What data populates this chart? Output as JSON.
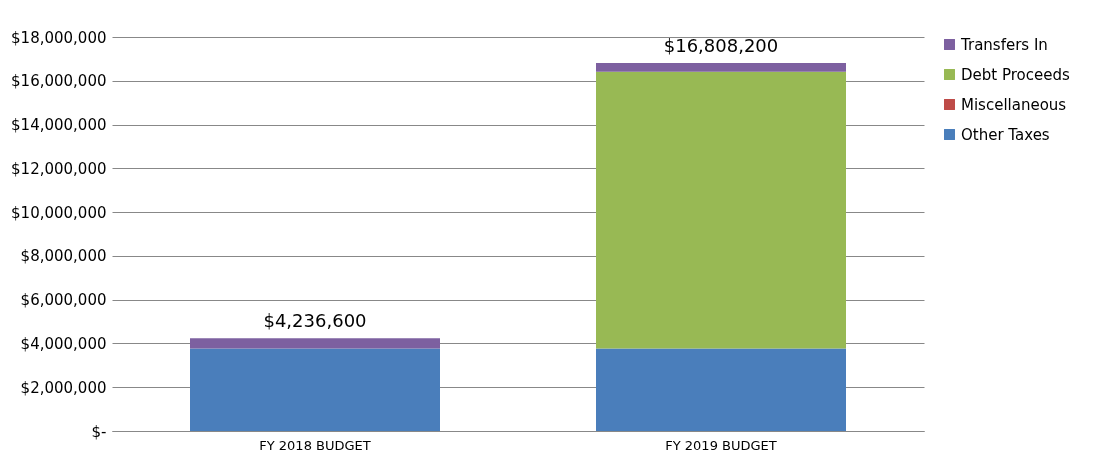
{
  "chart_data": {
    "type": "bar",
    "stacked": true,
    "categories": [
      "FY 2018 BUDGET",
      "FY 2019 BUDGET"
    ],
    "series": [
      {
        "name": "Other Taxes",
        "color": "#4a7ebb",
        "values": [
          3770000,
          3770000
        ]
      },
      {
        "name": "Miscellaneous",
        "color": "#be4b48",
        "values": [
          0,
          0
        ]
      },
      {
        "name": "Debt Proceeds",
        "color": "#98b954",
        "values": [
          0,
          12640000
        ]
      },
      {
        "name": "Transfers In",
        "color": "#7d60a0",
        "values": [
          466600,
          398200
        ]
      }
    ],
    "totals": [
      "$4,236,600",
      "$16,808,200"
    ],
    "ylim": [
      0,
      18000000
    ],
    "yticks": [
      {
        "value": 0,
        "label": "$-"
      },
      {
        "value": 2000000,
        "label": "$2,000,000"
      },
      {
        "value": 4000000,
        "label": "$4,000,000"
      },
      {
        "value": 6000000,
        "label": "$6,000,000"
      },
      {
        "value": 8000000,
        "label": "$8,000,000"
      },
      {
        "value": 10000000,
        "label": "$10,000,000"
      },
      {
        "value": 12000000,
        "label": "$12,000,000"
      },
      {
        "value": 14000000,
        "label": "$14,000,000"
      },
      {
        "value": 16000000,
        "label": "$16,000,000"
      },
      {
        "value": 18000000,
        "label": "$18,000,000"
      }
    ],
    "grid": "y",
    "legend": "right"
  }
}
